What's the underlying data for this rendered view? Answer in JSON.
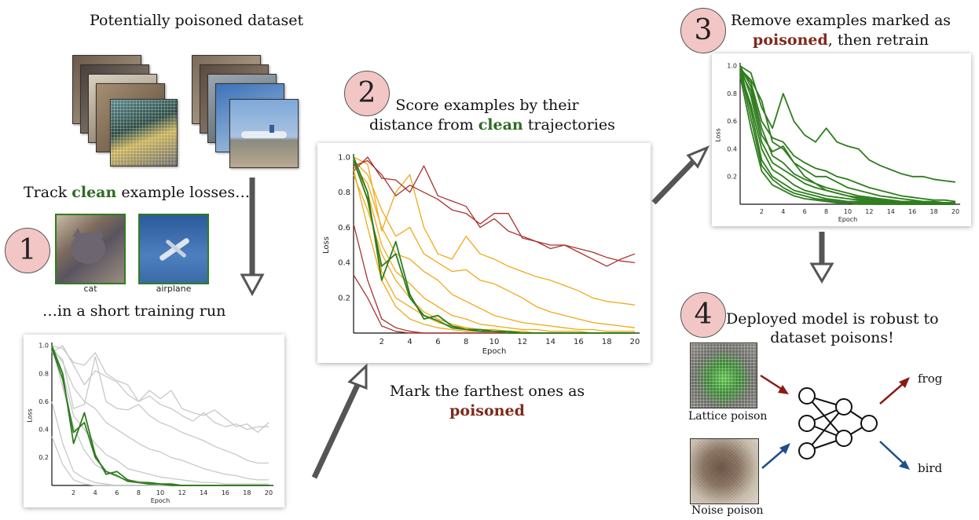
{
  "dataset": {
    "title": "Potentially poisoned dataset"
  },
  "step1": {
    "number": "1",
    "track_pre": "Track ",
    "track_clean": "clean",
    "track_post": " example losses…",
    "run_text": "…in a short training run",
    "examples": [
      {
        "label": "cat"
      },
      {
        "label": "airplane"
      }
    ]
  },
  "step2": {
    "number": "2",
    "line1": "Score examples by their",
    "line2_pre": "distance from ",
    "line2_clean": "clean",
    "line2_post": " trajectories",
    "mark_line1": "Mark the farthest ones as",
    "mark_poisoned": "poisoned"
  },
  "step3": {
    "number": "3",
    "line1": "Remove examples marked as",
    "line2_poisoned": "poisoned",
    "line2_post": ", then retrain"
  },
  "step4": {
    "number": "4",
    "line1": "Deployed model is robust to",
    "line2": "dataset poisons!",
    "outputs": [
      "frog",
      "bird"
    ],
    "inputs": [
      {
        "label": "Lattice poison"
      },
      {
        "label": "Noise poison"
      }
    ]
  },
  "colors": {
    "clean": "#2f7d1e",
    "poison": "#a8332f",
    "mid": "#f0a91a",
    "gray": "#c8c8c8",
    "badge": "#f3c6c6",
    "arrow_red": "#8b1a14",
    "arrow_blue": "#1f4f8a"
  },
  "chart_data": [
    {
      "id": "plot1",
      "type": "line",
      "xlabel": "Epoch",
      "ylabel": "Loss",
      "xlim": [
        0,
        20
      ],
      "ylim": [
        0,
        1.0
      ],
      "xticks": [
        "2",
        "4",
        "6",
        "8",
        "10",
        "12",
        "14",
        "16",
        "18",
        "20"
      ],
      "yticks": [
        "0.2",
        "0.4",
        "0.6",
        "0.8",
        "1.0"
      ],
      "series": [
        {
          "group": "clean",
          "values": [
            1.0,
            0.8,
            0.3,
            0.52,
            0.22,
            0.08,
            0.1,
            0.04,
            0.02,
            0.02,
            0.01,
            0.01,
            0.0,
            0.0,
            0.0,
            0.0,
            0.0,
            0.0,
            0.0,
            0.0,
            0.0
          ]
        },
        {
          "group": "clean",
          "values": [
            0.98,
            0.76,
            0.38,
            0.45,
            0.2,
            0.1,
            0.07,
            0.03,
            0.02,
            0.01,
            0.01,
            0.0,
            0.0,
            0.0,
            0.0,
            0.0,
            0.0,
            0.0,
            0.0,
            0.0,
            0.0
          ]
        },
        {
          "group": "background",
          "values": [
            1.0,
            0.98,
            0.88,
            0.86,
            0.95,
            0.8,
            0.75,
            0.72,
            0.6,
            0.68,
            0.62,
            0.68,
            0.55,
            0.52,
            0.5,
            0.54,
            0.48,
            0.42,
            0.44,
            0.38,
            0.45
          ]
        },
        {
          "group": "background",
          "values": [
            0.95,
            1.0,
            0.86,
            0.72,
            0.82,
            0.78,
            0.74,
            0.65,
            0.6,
            0.64,
            0.58,
            0.55,
            0.5,
            0.46,
            0.52,
            0.45,
            0.42,
            0.44,
            0.4,
            0.42,
            0.42
          ]
        },
        {
          "group": "background",
          "values": [
            0.97,
            0.9,
            0.55,
            0.58,
            0.92,
            0.6,
            0.55,
            0.54,
            0.58,
            0.5,
            0.45,
            0.42,
            0.38,
            0.35,
            0.32,
            0.28,
            0.25,
            0.22,
            0.18,
            0.16,
            0.16
          ]
        },
        {
          "group": "background",
          "values": [
            0.99,
            0.88,
            0.7,
            0.6,
            0.55,
            0.45,
            0.4,
            0.35,
            0.3,
            0.26,
            0.24,
            0.2,
            0.18,
            0.15,
            0.12,
            0.1,
            0.08,
            0.07,
            0.05,
            0.04,
            0.04
          ]
        },
        {
          "group": "background",
          "values": [
            0.96,
            0.8,
            0.5,
            0.4,
            0.3,
            0.22,
            0.18,
            0.12,
            0.1,
            0.08,
            0.06,
            0.05,
            0.04,
            0.03,
            0.02,
            0.02,
            0.01,
            0.01,
            0.01,
            0.01,
            0.01
          ]
        },
        {
          "group": "background",
          "values": [
            1.0,
            0.7,
            0.42,
            0.25,
            0.15,
            0.1,
            0.06,
            0.04,
            0.03,
            0.02,
            0.01,
            0.01,
            0.0,
            0.0,
            0.0,
            0.0,
            0.0,
            0.0,
            0.0,
            0.0,
            0.0
          ]
        },
        {
          "group": "background",
          "values": [
            0.6,
            0.3,
            0.1,
            0.05,
            0.02,
            0.01,
            0.0,
            0.0,
            0.0,
            0.0,
            0.0,
            0.0,
            0.0,
            0.0,
            0.0,
            0.0,
            0.0,
            0.0,
            0.0,
            0.0,
            0.0
          ]
        },
        {
          "group": "background",
          "values": [
            0.35,
            0.15,
            0.04,
            0.01,
            0.0,
            0.0,
            0.0,
            0.0,
            0.0,
            0.0,
            0.0,
            0.0,
            0.0,
            0.0,
            0.0,
            0.0,
            0.0,
            0.0,
            0.0,
            0.0,
            0.0
          ]
        }
      ]
    },
    {
      "id": "plot2",
      "type": "line",
      "xlabel": "Epoch",
      "ylabel": "Loss",
      "xlim": [
        0,
        20
      ],
      "ylim": [
        0,
        1.0
      ],
      "xticks": [
        "2",
        "4",
        "6",
        "8",
        "10",
        "12",
        "14",
        "16",
        "18",
        "20"
      ],
      "yticks": [
        "0.2",
        "0.4",
        "0.6",
        "0.8",
        "1.0"
      ],
      "series": [
        {
          "group": "poison",
          "values": [
            0.92,
            1.0,
            0.88,
            0.87,
            0.8,
            0.95,
            0.78,
            0.75,
            0.72,
            0.6,
            0.65,
            0.58,
            0.55,
            0.52,
            0.48,
            0.5,
            0.46,
            0.42,
            0.38,
            0.42,
            0.45
          ]
        },
        {
          "group": "poison",
          "values": [
            0.95,
            0.98,
            0.9,
            0.78,
            0.84,
            0.8,
            0.76,
            0.7,
            0.68,
            0.62,
            0.68,
            0.68,
            0.54,
            0.52,
            0.5,
            0.5,
            0.48,
            0.46,
            0.43,
            0.41,
            0.4
          ]
        },
        {
          "group": "poison",
          "values": [
            0.62,
            0.3,
            0.08,
            0.03,
            0.01,
            0.0,
            0.0,
            0.0,
            0.0,
            0.0,
            0.0,
            0.0,
            0.0,
            0.0,
            0.0,
            0.0,
            0.0,
            0.0,
            0.0,
            0.0,
            0.0
          ]
        },
        {
          "group": "poison",
          "values": [
            0.33,
            0.2,
            0.04,
            0.01,
            0.0,
            0.0,
            0.0,
            0.0,
            0.0,
            0.0,
            0.0,
            0.0,
            0.0,
            0.0,
            0.0,
            0.0,
            0.0,
            0.0,
            0.0,
            0.0,
            0.0
          ]
        },
        {
          "group": "mid",
          "values": [
            1.0,
            0.96,
            0.58,
            0.8,
            0.9,
            0.6,
            0.45,
            0.42,
            0.55,
            0.45,
            0.42,
            0.38,
            0.35,
            0.32,
            0.3,
            0.27,
            0.24,
            0.2,
            0.18,
            0.17,
            0.16
          ]
        },
        {
          "group": "mid",
          "values": [
            0.98,
            0.9,
            0.7,
            0.55,
            0.6,
            0.45,
            0.4,
            0.35,
            0.36,
            0.3,
            0.28,
            0.24,
            0.2,
            0.15,
            0.12,
            0.1,
            0.08,
            0.06,
            0.05,
            0.04,
            0.03
          ]
        },
        {
          "group": "mid",
          "values": [
            0.95,
            0.85,
            0.6,
            0.45,
            0.42,
            0.35,
            0.3,
            0.22,
            0.18,
            0.14,
            0.1,
            0.08,
            0.06,
            0.05,
            0.04,
            0.03,
            0.02,
            0.02,
            0.01,
            0.01,
            0.01
          ]
        },
        {
          "group": "mid",
          "values": [
            0.97,
            0.8,
            0.5,
            0.35,
            0.28,
            0.2,
            0.15,
            0.1,
            0.08,
            0.05,
            0.04,
            0.03,
            0.02,
            0.02,
            0.01,
            0.01,
            0.01,
            0.0,
            0.0,
            0.0,
            0.0
          ]
        },
        {
          "group": "mid",
          "values": [
            0.9,
            0.7,
            0.45,
            0.3,
            0.2,
            0.12,
            0.08,
            0.05,
            0.03,
            0.02,
            0.01,
            0.01,
            0.0,
            0.0,
            0.0,
            0.0,
            0.0,
            0.0,
            0.0,
            0.0,
            0.0
          ]
        },
        {
          "group": "mid",
          "values": [
            0.99,
            0.75,
            0.35,
            0.2,
            0.15,
            0.1,
            0.06,
            0.04,
            0.03,
            0.02,
            0.02,
            0.01,
            0.01,
            0.0,
            0.0,
            0.0,
            0.0,
            0.0,
            0.0,
            0.0,
            0.0
          ]
        },
        {
          "group": "mid",
          "values": [
            0.93,
            0.6,
            0.3,
            0.15,
            0.08,
            0.05,
            0.03,
            0.02,
            0.01,
            0.01,
            0.0,
            0.0,
            0.0,
            0.0,
            0.0,
            0.0,
            0.0,
            0.0,
            0.0,
            0.0,
            0.0
          ]
        },
        {
          "group": "clean",
          "values": [
            1.0,
            0.8,
            0.3,
            0.52,
            0.22,
            0.08,
            0.1,
            0.04,
            0.02,
            0.02,
            0.01,
            0.01,
            0.0,
            0.0,
            0.0,
            0.0,
            0.0,
            0.0,
            0.0,
            0.0,
            0.0
          ]
        },
        {
          "group": "clean",
          "values": [
            0.98,
            0.76,
            0.38,
            0.45,
            0.2,
            0.1,
            0.07,
            0.03,
            0.02,
            0.01,
            0.01,
            0.0,
            0.0,
            0.0,
            0.0,
            0.0,
            0.0,
            0.0,
            0.0,
            0.0,
            0.0
          ]
        }
      ]
    },
    {
      "id": "plot3",
      "type": "line",
      "xlabel": "Epoch",
      "ylabel": "Loss",
      "xlim": [
        0,
        20
      ],
      "ylim": [
        0,
        1.0
      ],
      "xticks": [
        "2",
        "4",
        "6",
        "8",
        "10",
        "12",
        "14",
        "16",
        "18",
        "20"
      ],
      "yticks": [
        "0.2",
        "0.4",
        "0.6",
        "0.8",
        "1.0"
      ],
      "series": [
        {
          "group": "clean",
          "values": [
            1.0,
            0.95,
            0.7,
            0.55,
            0.8,
            0.6,
            0.5,
            0.45,
            0.55,
            0.45,
            0.42,
            0.4,
            0.32,
            0.28,
            0.25,
            0.22,
            0.2,
            0.2,
            0.18,
            0.17,
            0.16
          ]
        },
        {
          "group": "clean",
          "values": [
            0.98,
            0.88,
            0.6,
            0.48,
            0.45,
            0.35,
            0.3,
            0.26,
            0.24,
            0.2,
            0.18,
            0.15,
            0.12,
            0.1,
            0.08,
            0.06,
            0.05,
            0.04,
            0.03,
            0.03,
            0.02
          ]
        },
        {
          "group": "clean",
          "values": [
            0.96,
            0.82,
            0.5,
            0.38,
            0.42,
            0.3,
            0.25,
            0.2,
            0.2,
            0.16,
            0.12,
            0.1,
            0.08,
            0.06,
            0.05,
            0.04,
            0.03,
            0.02,
            0.02,
            0.01,
            0.01
          ]
        },
        {
          "group": "clean",
          "values": [
            1.0,
            0.78,
            0.45,
            0.3,
            0.25,
            0.2,
            0.15,
            0.12,
            0.1,
            0.08,
            0.06,
            0.05,
            0.04,
            0.03,
            0.02,
            0.02,
            0.01,
            0.01,
            0.01,
            0.01,
            0.01
          ]
        },
        {
          "group": "clean",
          "values": [
            0.95,
            0.72,
            0.4,
            0.25,
            0.2,
            0.14,
            0.1,
            0.08,
            0.06,
            0.05,
            0.04,
            0.03,
            0.02,
            0.02,
            0.01,
            0.01,
            0.01,
            0.0,
            0.0,
            0.0,
            0.0
          ]
        },
        {
          "group": "clean",
          "values": [
            0.99,
            0.68,
            0.32,
            0.2,
            0.15,
            0.1,
            0.08,
            0.06,
            0.04,
            0.03,
            0.02,
            0.02,
            0.01,
            0.01,
            0.01,
            0.0,
            0.0,
            0.0,
            0.0,
            0.0,
            0.0
          ]
        },
        {
          "group": "clean",
          "values": [
            0.97,
            0.62,
            0.28,
            0.18,
            0.12,
            0.08,
            0.06,
            0.04,
            0.03,
            0.02,
            0.01,
            0.01,
            0.01,
            0.0,
            0.0,
            0.0,
            0.0,
            0.0,
            0.0,
            0.0,
            0.0
          ]
        },
        {
          "group": "clean",
          "values": [
            0.93,
            0.55,
            0.24,
            0.14,
            0.1,
            0.06,
            0.04,
            0.03,
            0.02,
            0.01,
            0.01,
            0.0,
            0.0,
            0.0,
            0.0,
            0.0,
            0.0,
            0.0,
            0.0,
            0.0,
            0.0
          ]
        },
        {
          "group": "clean",
          "values": [
            1.0,
            0.85,
            0.55,
            0.35,
            0.3,
            0.22,
            0.18,
            0.15,
            0.12,
            0.1,
            0.08,
            0.06,
            0.05,
            0.04,
            0.03,
            0.02,
            0.02,
            0.01,
            0.01,
            0.01,
            0.01
          ]
        },
        {
          "group": "clean",
          "values": [
            0.98,
            0.9,
            0.75,
            0.45,
            0.4,
            0.3,
            0.2,
            0.15,
            0.1,
            0.08,
            0.06,
            0.04,
            0.03,
            0.02,
            0.02,
            0.01,
            0.01,
            0.01,
            0.0,
            0.0,
            0.0
          ]
        }
      ]
    }
  ]
}
